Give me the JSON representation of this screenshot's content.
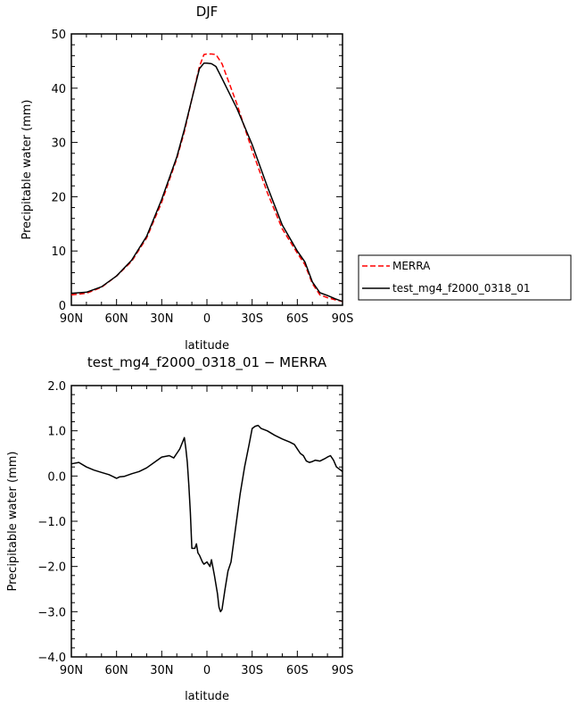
{
  "chart_data": [
    {
      "type": "line",
      "title": "DJF",
      "xlabel": "latitude",
      "ylabel": "Precipitable water  (mm)",
      "xlim": [
        90,
        -90
      ],
      "ylim": [
        0,
        50
      ],
      "x_ticks": [
        90,
        60,
        30,
        0,
        -30,
        -60,
        -90
      ],
      "x_tick_labels": [
        "90N",
        "60N",
        "30N",
        "0",
        "30S",
        "60S",
        "90S"
      ],
      "y_ticks": [
        0,
        10,
        20,
        30,
        40,
        50
      ],
      "y_tick_labels": [
        "0",
        "10",
        "20",
        "30",
        "40",
        "50"
      ],
      "grid": false,
      "legend_position": "right",
      "series": [
        {
          "name": "MERRA",
          "color": "#ff0000",
          "dash": "dashed",
          "x": [
            90,
            80,
            70,
            60,
            50,
            40,
            30,
            20,
            15,
            10,
            5,
            2,
            0,
            -3,
            -6,
            -10,
            -20,
            -30,
            -40,
            -50,
            -60,
            -65,
            -70,
            -75,
            -80,
            -85,
            -90
          ],
          "y": [
            1.9,
            2.2,
            3.3,
            5.4,
            8.1,
            12.4,
            19,
            27,
            32,
            38,
            44,
            46.2,
            46.3,
            46.3,
            46.2,
            44.5,
            37,
            28.5,
            20.8,
            14.1,
            9.6,
            7.5,
            4,
            1.9,
            1.4,
            1,
            0.7
          ]
        },
        {
          "name": "test_mg4_f2000_0318_01",
          "color": "#000000",
          "dash": "solid",
          "x": [
            90,
            80,
            70,
            60,
            50,
            40,
            30,
            20,
            15,
            10,
            5,
            2,
            0,
            -3,
            -6,
            -10,
            -20,
            -30,
            -40,
            -50,
            -60,
            -65,
            -70,
            -75,
            -80,
            -85,
            -90
          ],
          "y": [
            2.2,
            2.4,
            3.4,
            5.4,
            8.3,
            12.7,
            19.5,
            27.3,
            32.4,
            38,
            43.6,
            44.6,
            44.6,
            44.5,
            44,
            41.8,
            36.2,
            29.6,
            21.9,
            14.8,
            10,
            8,
            4.3,
            2.3,
            1.8,
            1.2,
            0.7
          ]
        }
      ]
    },
    {
      "type": "line",
      "title": "test_mg4_f2000_0318_01 − MERRA",
      "xlabel": "latitude",
      "ylabel": "Precipitable water  (mm)",
      "xlim": [
        90,
        -90
      ],
      "ylim": [
        -4,
        2
      ],
      "x_ticks": [
        90,
        60,
        30,
        0,
        -30,
        -60,
        -90
      ],
      "x_tick_labels": [
        "90N",
        "60N",
        "30N",
        "0",
        "30S",
        "60S",
        "90S"
      ],
      "y_ticks": [
        -4,
        -3,
        -2,
        -1,
        0,
        1,
        2
      ],
      "y_tick_labels": [
        "−4.0",
        "−3.0",
        "−2.0",
        "−1.0",
        "0.0",
        "1.0",
        "2.0"
      ],
      "grid": false,
      "series": [
        {
          "color": "#000000",
          "dash": "solid",
          "x": [
            90,
            85,
            80,
            75,
            70,
            65,
            60,
            58,
            55,
            50,
            45,
            40,
            35,
            30,
            25,
            22,
            20,
            18,
            15,
            14,
            13,
            12,
            11,
            10,
            8,
            7,
            6,
            5,
            3,
            2,
            0,
            -2,
            -3,
            -5,
            -7,
            -8,
            -9,
            -10,
            -12,
            -14,
            -16,
            -18,
            -20,
            -22,
            -25,
            -28,
            -30,
            -32,
            -34,
            -36,
            -40,
            -45,
            -50,
            -55,
            -58,
            -60,
            -62,
            -64,
            -66,
            -68,
            -70,
            -72,
            -75,
            -78,
            -80,
            -82,
            -84,
            -86,
            -88,
            -90
          ],
          "y": [
            0.27,
            0.3,
            0.2,
            0.13,
            0.08,
            0.03,
            -0.05,
            -0.02,
            -0.01,
            0.05,
            0.1,
            0.18,
            0.3,
            0.42,
            0.45,
            0.4,
            0.5,
            0.6,
            0.85,
            0.6,
            0.3,
            -0.2,
            -0.8,
            -1.6,
            -1.6,
            -1.5,
            -1.7,
            -1.75,
            -1.9,
            -1.95,
            -1.9,
            -2,
            -1.85,
            -2.2,
            -2.6,
            -2.9,
            -3,
            -2.95,
            -2.5,
            -2.1,
            -1.9,
            -1.4,
            -0.9,
            -0.4,
            0.2,
            0.7,
            1.05,
            1.1,
            1.12,
            1.05,
            1,
            0.9,
            0.82,
            0.75,
            0.7,
            0.6,
            0.5,
            0.45,
            0.33,
            0.3,
            0.32,
            0.35,
            0.33,
            0.38,
            0.42,
            0.45,
            0.35,
            0.2,
            0.15,
            0.1
          ]
        }
      ]
    }
  ]
}
